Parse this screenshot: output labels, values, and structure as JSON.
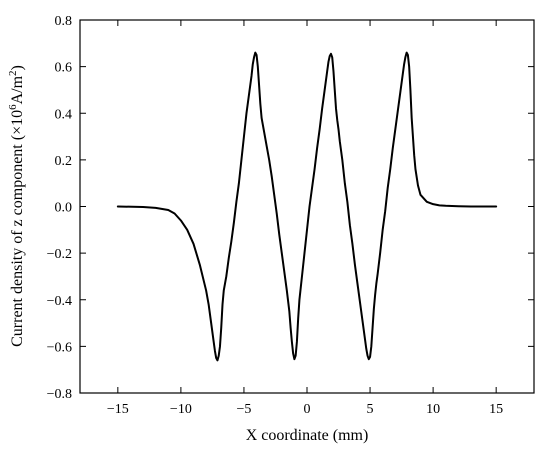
{
  "chart_data": {
    "type": "line",
    "title": "",
    "xlabel": "X coordinate (mm)",
    "ylabel_prefix": "Current density of z component (×10",
    "ylabel_exp1": "6",
    "ylabel_mid": "A/m",
    "ylabel_exp2": "2",
    "ylabel_suffix": ")",
    "xlim": [
      -18,
      18
    ],
    "ylim": [
      -0.8,
      0.8
    ],
    "xticks": [
      -15,
      -10,
      -5,
      0,
      5,
      10,
      15
    ],
    "xtick_labels": [
      "−15",
      "−10",
      "−5",
      "0",
      "5",
      "10",
      "15"
    ],
    "yticks": [
      -0.8,
      -0.6,
      -0.4,
      -0.2,
      0.0,
      0.2,
      0.4,
      0.6,
      0.8
    ],
    "ytick_labels": [
      "−0.8",
      "−0.6",
      "−0.4",
      "−0.2",
      "0.0",
      "0.2",
      "0.4",
      "0.6",
      "0.8"
    ],
    "grid": false,
    "series": [
      {
        "color": "#000000",
        "x": [
          -15,
          -13,
          -12,
          -11,
          -10.5,
          -10,
          -9.5,
          -9,
          -8.5,
          -8,
          -7.8,
          -7.6,
          -7.4,
          -7.3,
          -7.2,
          -7.1,
          -7.0,
          -6.9,
          -6.8,
          -6.7,
          -6.6,
          -6.5,
          -6.4,
          -6.3,
          -6.2,
          -6.0,
          -5.8,
          -5.6,
          -5.4,
          -5.2,
          -5.0,
          -4.8,
          -4.6,
          -4.4,
          -4.3,
          -4.2,
          -4.1,
          -4.0,
          -3.9,
          -3.8,
          -3.7,
          -3.6,
          -3.5,
          -3.4,
          -3.2,
          -3.0,
          -2.8,
          -2.6,
          -2.4,
          -2.2,
          -2.0,
          -1.8,
          -1.6,
          -1.4,
          -1.3,
          -1.2,
          -1.1,
          -1.0,
          -0.9,
          -0.8,
          -0.7,
          -0.6,
          -0.5,
          -0.4,
          -0.2,
          0.0,
          0.2,
          0.4,
          0.6,
          0.8,
          1.0,
          1.2,
          1.4,
          1.6,
          1.7,
          1.8,
          1.9,
          2.0,
          2.1,
          2.2,
          2.3,
          2.4,
          2.5,
          2.6,
          2.8,
          3.0,
          3.2,
          3.4,
          3.6,
          3.8,
          4.0,
          4.2,
          4.4,
          4.6,
          4.7,
          4.8,
          4.9,
          5.0,
          5.1,
          5.2,
          5.3,
          5.4,
          5.5,
          5.6,
          5.8,
          6.0,
          6.2,
          6.4,
          6.6,
          6.8,
          7.0,
          7.2,
          7.4,
          7.6,
          7.7,
          7.8,
          7.9,
          8.0,
          8.1,
          8.2,
          8.3,
          8.4,
          8.5,
          8.6,
          8.8,
          9.0,
          9.5,
          10,
          10.5,
          11,
          12,
          13,
          15
        ],
        "y": [
          0.0,
          -0.002,
          -0.006,
          -0.015,
          -0.03,
          -0.06,
          -0.1,
          -0.16,
          -0.25,
          -0.36,
          -0.42,
          -0.5,
          -0.58,
          -0.62,
          -0.65,
          -0.66,
          -0.64,
          -0.6,
          -0.52,
          -0.42,
          -0.36,
          -0.33,
          -0.3,
          -0.26,
          -0.22,
          -0.15,
          -0.07,
          0.02,
          0.1,
          0.2,
          0.3,
          0.4,
          0.48,
          0.56,
          0.61,
          0.64,
          0.66,
          0.65,
          0.6,
          0.52,
          0.44,
          0.38,
          0.35,
          0.32,
          0.26,
          0.2,
          0.13,
          0.05,
          -0.03,
          -0.12,
          -0.2,
          -0.28,
          -0.36,
          -0.45,
          -0.52,
          -0.58,
          -0.63,
          -0.655,
          -0.64,
          -0.58,
          -0.48,
          -0.4,
          -0.35,
          -0.3,
          -0.2,
          -0.1,
          0.0,
          0.08,
          0.16,
          0.25,
          0.33,
          0.42,
          0.5,
          0.58,
          0.62,
          0.645,
          0.655,
          0.64,
          0.58,
          0.5,
          0.42,
          0.37,
          0.33,
          0.28,
          0.2,
          0.1,
          0.02,
          -0.08,
          -0.16,
          -0.25,
          -0.33,
          -0.41,
          -0.49,
          -0.57,
          -0.61,
          -0.64,
          -0.655,
          -0.645,
          -0.6,
          -0.52,
          -0.44,
          -0.38,
          -0.33,
          -0.29,
          -0.2,
          -0.1,
          -0.02,
          0.08,
          0.16,
          0.25,
          0.33,
          0.41,
          0.49,
          0.57,
          0.61,
          0.64,
          0.66,
          0.65,
          0.6,
          0.5,
          0.38,
          0.3,
          0.22,
          0.16,
          0.09,
          0.05,
          0.02,
          0.01,
          0.005,
          0.003,
          0.001,
          0.0,
          0.0
        ]
      }
    ]
  }
}
